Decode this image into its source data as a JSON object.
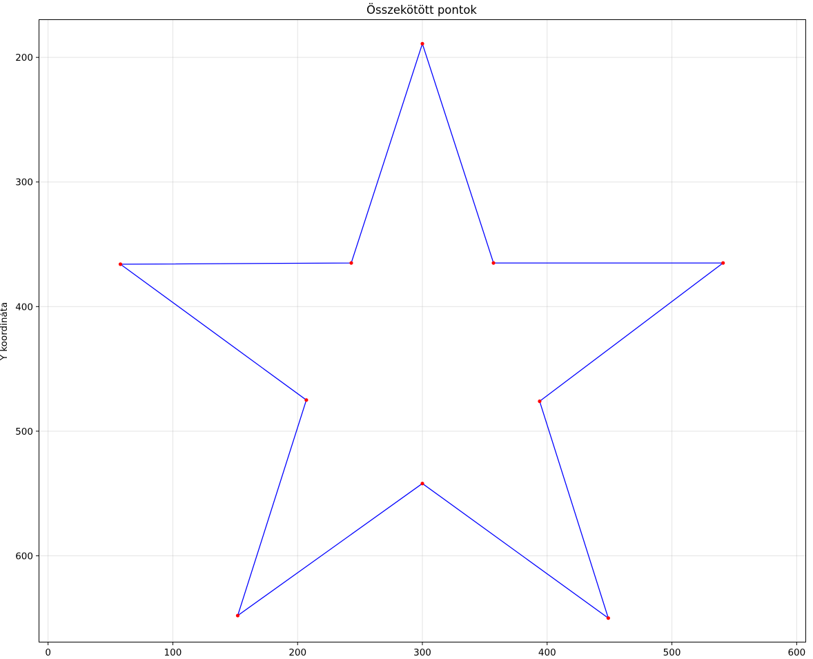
{
  "chart_data": {
    "type": "line",
    "title": "Összekötött pontok",
    "xlabel": "",
    "ylabel": "Y koordináta",
    "xlim": [
      -7,
      607
    ],
    "ylim": [
      170,
      669
    ],
    "y_inverted": true,
    "grid": true,
    "closed_path": true,
    "x_ticks": [
      0,
      100,
      200,
      300,
      400,
      500,
      600
    ],
    "y_ticks": [
      200,
      300,
      400,
      500,
      600
    ],
    "line_color": "#0000ff",
    "marker_color": "#ff0000",
    "series": [
      {
        "points": [
          {
            "x": 300,
            "y": 189
          },
          {
            "x": 357,
            "y": 365
          },
          {
            "x": 541,
            "y": 365
          },
          {
            "x": 394,
            "y": 476
          },
          {
            "x": 449,
            "y": 650
          },
          {
            "x": 300,
            "y": 542
          },
          {
            "x": 152,
            "y": 648
          },
          {
            "x": 207,
            "y": 475
          },
          {
            "x": 58,
            "y": 366
          },
          {
            "x": 243,
            "y": 365
          }
        ]
      }
    ]
  }
}
